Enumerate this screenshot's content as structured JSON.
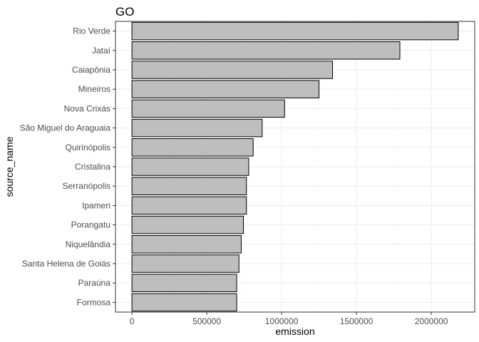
{
  "chart_data": {
    "type": "bar",
    "orientation": "horizontal",
    "title": "GO",
    "xlabel": "emission",
    "ylabel": "source_name",
    "categories": [
      "Rio Verde",
      "Jataí",
      "Caiapônia",
      "Mineiros",
      "Nova Crixás",
      "São Miguel do Araguaia",
      "Quirinópolis",
      "Cristalina",
      "Serranópolis",
      "Ipameri",
      "Porangatu",
      "Niquelândia",
      "Santa Helena de Goiás",
      "Paraúna",
      "Formosa"
    ],
    "values": [
      2180000,
      1790000,
      1340000,
      1250000,
      1020000,
      870000,
      810000,
      780000,
      765000,
      765000,
      745000,
      730000,
      715000,
      700000,
      700000
    ],
    "xlim": [
      -110000,
      2290000
    ],
    "xticks": [
      0,
      500000,
      1000000,
      1500000,
      2000000
    ],
    "xtick_labels": [
      "0",
      "500000",
      "1000000",
      "1500000",
      "2000000"
    ],
    "grid": true,
    "colors": {
      "bar_fill": "#bebebe",
      "bar_border": "#000000",
      "panel_border": "#333333",
      "grid": "#ebebeb"
    }
  }
}
